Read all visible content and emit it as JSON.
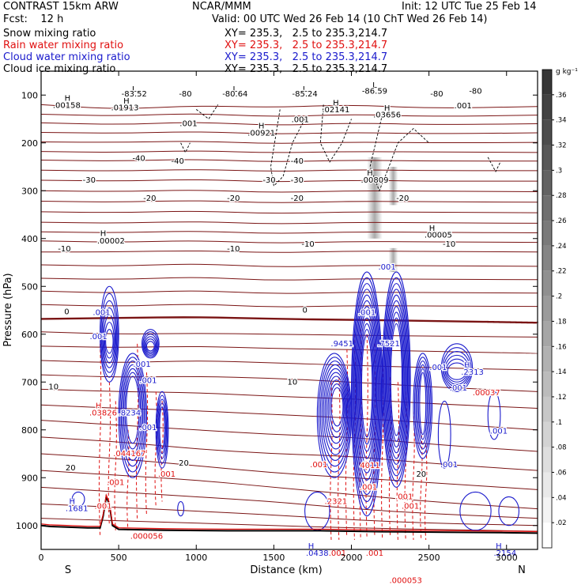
{
  "header": {
    "model": "CONTRAST 15km ARW",
    "center": "NCAR/MMM",
    "init": "Init: 12 UTC Tue 25 Feb 14",
    "fcst": "Fcst:    12 h",
    "valid": "Valid: 00 UTC Wed 26 Feb 14 (10 ChT Wed 26 Feb 14)",
    "fields": [
      {
        "name": "Snow mixing ratio",
        "xy": "XY= 235.3,   2.5 to 235.3,214.7",
        "color": "#000000"
      },
      {
        "name": "Rain water mixing ratio",
        "xy": "XY= 235.3,   2.5 to 235.3,214.7",
        "color": "#e01010"
      },
      {
        "name": "Cloud water mixing ratio",
        "xy": "XY= 235.3,   2.5 to 235.3,214.7",
        "color": "#1a1acc"
      },
      {
        "name": "Cloud ice mixing ratio",
        "xy": "XY= 235.3,   2.5 to 235.3,214.7",
        "color": "#000000"
      }
    ]
  },
  "chart_data": {
    "type": "contour",
    "xlabel": "Distance (km)",
    "ylabel": "Pressure (hPa)",
    "xlim": [
      0,
      3200
    ],
    "ylim": [
      1050,
      50
    ],
    "xticks": [
      0,
      500,
      1000,
      1500,
      2000,
      2500,
      3000
    ],
    "yticks": [
      100,
      200,
      300,
      400,
      500,
      600,
      700,
      800,
      900,
      1000
    ],
    "x_end_labels": {
      "left": "S",
      "right": "N"
    },
    "colorbar": {
      "unit": "g kg⁻¹",
      "ticks": [
        ".02",
        ".04",
        ".06",
        ".08",
        ".1",
        ".12",
        ".14",
        ".16",
        ".18",
        ".2",
        ".22",
        ".24",
        ".26",
        ".28",
        ".3",
        ".32",
        ".34",
        ".36"
      ],
      "tick_values": [
        0.02,
        0.04,
        0.06,
        0.08,
        0.1,
        0.12,
        0.14,
        0.16,
        0.18,
        0.2,
        0.22,
        0.24,
        0.26,
        0.28,
        0.3,
        0.32,
        0.34,
        0.36
      ],
      "range": [
        0,
        0.38
      ]
    },
    "temperature_contours": [
      {
        "value": -80,
        "label": "-80",
        "pressures": [
          120,
          130,
          122,
          126,
          120,
          128,
          124
        ]
      },
      {
        "value": -70,
        "label": "",
        "pressures": [
          140,
          144,
          138,
          146,
          140,
          145,
          142
        ]
      },
      {
        "value": -60,
        "label": "",
        "pressures": [
          158,
          162,
          156,
          164,
          158,
          162,
          160
        ]
      },
      {
        "value": -55,
        "label": "",
        "pressures": [
          178,
          180,
          176,
          182,
          178,
          181,
          179
        ]
      },
      {
        "value": -50,
        "label": "",
        "pressures": [
          198,
          199,
          196,
          202,
          198,
          200,
          199
        ]
      },
      {
        "value": -45,
        "label": "",
        "pressures": [
          218,
          220,
          216,
          221,
          218,
          219,
          220
        ]
      },
      {
        "value": -40,
        "label": "-40",
        "pressures": [
          236,
          238,
          234,
          240,
          236,
          238,
          238
        ]
      },
      {
        "value": -35,
        "label": "",
        "pressures": [
          257,
          259,
          255,
          260,
          256,
          258,
          258
        ]
      },
      {
        "value": -30,
        "label": "-30",
        "pressures": [
          278,
          280,
          276,
          282,
          278,
          280,
          280
        ]
      },
      {
        "value": -25,
        "label": "",
        "pressures": [
          300,
          302,
          298,
          304,
          300,
          301,
          302
        ]
      },
      {
        "value": -20,
        "label": "-20",
        "pressures": [
          322,
          324,
          320,
          326,
          322,
          323,
          324
        ]
      },
      {
        "value": -18,
        "label": "",
        "pressures": [
          344,
          346,
          342,
          348,
          344,
          345,
          346
        ]
      },
      {
        "value": -15,
        "label": "",
        "pressures": [
          366,
          368,
          364,
          370,
          366,
          367,
          368
        ]
      },
      {
        "value": -12,
        "label": "",
        "pressures": [
          386,
          388,
          384,
          390,
          386,
          387,
          388
        ]
      },
      {
        "value": -11,
        "label": "",
        "pressures": [
          405,
          408,
          404,
          410,
          406,
          407,
          408
        ]
      },
      {
        "value": -10,
        "label": "-10",
        "pressures": [
          428,
          428,
          425,
          430,
          426,
          427,
          428
        ]
      },
      {
        "value": -8,
        "label": "",
        "pressures": [
          455,
          458,
          452,
          460,
          456,
          457,
          458
        ]
      },
      {
        "value": -6,
        "label": "",
        "pressures": [
          483,
          486,
          480,
          488,
          484,
          485,
          486
        ]
      },
      {
        "value": -4,
        "label": "",
        "pressures": [
          510,
          514,
          508,
          516,
          512,
          513,
          514
        ]
      },
      {
        "value": -2,
        "label": "",
        "pressures": [
          538,
          542,
          536,
          544,
          540,
          541,
          542
        ]
      },
      {
        "value": 0,
        "label": "0",
        "pressures": [
          568,
          566,
          564,
          568,
          570,
          572,
          576
        ],
        "bold": true
      },
      {
        "value": 2,
        "label": "",
        "pressures": [
          595,
          600,
          598,
          600,
          602,
          604,
          606
        ]
      },
      {
        "value": 4,
        "label": "",
        "pressures": [
          625,
          628,
          625,
          630,
          632,
          636,
          640
        ]
      },
      {
        "value": 6,
        "label": "",
        "pressures": [
          655,
          660,
          655,
          660,
          665,
          670,
          675
        ]
      },
      {
        "value": 8,
        "label": "",
        "pressures": [
          685,
          690,
          688,
          692,
          700,
          710,
          720
        ]
      },
      {
        "value": 10,
        "label": "10",
        "pressures": [
          715,
          720,
          722,
          730,
          735,
          745,
          755
        ]
      },
      {
        "value": 12,
        "label": "",
        "pressures": [
          748,
          755,
          760,
          768,
          775,
          785,
          800
        ]
      },
      {
        "value": 14,
        "label": "",
        "pressures": [
          780,
          790,
          800,
          810,
          815,
          830,
          845
        ]
      },
      {
        "value": 16,
        "label": "",
        "pressures": [
          815,
          825,
          840,
          850,
          855,
          870,
          885
        ]
      },
      {
        "value": 18,
        "label": "",
        "pressures": [
          850,
          860,
          875,
          890,
          900,
          910,
          925
        ]
      },
      {
        "value": 20,
        "label": "20",
        "pressures": [
          885,
          895,
          905,
          920,
          935,
          950,
          965
        ]
      },
      {
        "value": 22,
        "label": "",
        "pressures": [
          920,
          930,
          940,
          950,
          965,
          975,
          985
        ]
      },
      {
        "value": 24,
        "label": "",
        "pressures": [
          955,
          962,
          970,
          978,
          988,
          995,
          1000
        ]
      },
      {
        "value": 26,
        "label": "",
        "pressures": [
          985,
          990,
          995,
          1000,
          1005,
          1008,
          1012
        ]
      }
    ],
    "contour_x": [
      0,
      500,
      1000,
      1500,
      2000,
      2500,
      3200
    ],
    "annotations": [
      {
        "text": "H",
        "x": 170,
        "p": 112,
        "color": "#000000"
      },
      {
        "text": ".00158",
        "x": 165,
        "p": 127,
        "color": "#000000"
      },
      {
        "text": "L",
        "x": 600,
        "p": 93,
        "color": "#000000"
      },
      {
        "text": "-83.52",
        "x": 600,
        "p": 103,
        "color": "#000000"
      },
      {
        "text": "H",
        "x": 550,
        "p": 118,
        "color": "#000000"
      },
      {
        "text": ".01913",
        "x": 540,
        "p": 132,
        "color": "#000000"
      },
      {
        "text": ".001",
        "x": 950,
        "p": 165,
        "color": "#000000"
      },
      {
        "text": "-80",
        "x": 930,
        "p": 103,
        "color": "#000000"
      },
      {
        "text": "L",
        "x": 1250,
        "p": 93,
        "color": "#000000"
      },
      {
        "text": "-80.64",
        "x": 1250,
        "p": 103,
        "color": "#000000"
      },
      {
        "text": "H",
        "x": 1420,
        "p": 170,
        "color": "#000000"
      },
      {
        "text": ".00921",
        "x": 1420,
        "p": 185,
        "color": "#000000"
      },
      {
        "text": "L",
        "x": 1700,
        "p": 93,
        "color": "#000000"
      },
      {
        "text": "-85.24",
        "x": 1700,
        "p": 103,
        "color": "#000000"
      },
      {
        "text": ".001",
        "x": 1670,
        "p": 157,
        "color": "#000000"
      },
      {
        "text": "H",
        "x": 1900,
        "p": 122,
        "color": "#000000"
      },
      {
        "text": ".02141",
        "x": 1900,
        "p": 136,
        "color": "#000000"
      },
      {
        "text": "L",
        "x": 2150,
        "p": 85,
        "color": "#000000"
      },
      {
        "text": "-86.59",
        "x": 2150,
        "p": 97,
        "color": "#000000"
      },
      {
        "text": "H",
        "x": 2230,
        "p": 133,
        "color": "#000000"
      },
      {
        "text": ".03656",
        "x": 2230,
        "p": 147,
        "color": "#000000"
      },
      {
        "text": "-80",
        "x": 2550,
        "p": 103,
        "color": "#000000"
      },
      {
        "text": "-80",
        "x": 2800,
        "p": 97,
        "color": "#000000"
      },
      {
        "text": ".001",
        "x": 2720,
        "p": 128,
        "color": "#000000"
      },
      {
        "text": "-40",
        "x": 630,
        "p": 238,
        "color": "#000000"
      },
      {
        "text": "-40",
        "x": 880,
        "p": 243,
        "color": "#000000"
      },
      {
        "text": "-40",
        "x": 1650,
        "p": 243,
        "color": "#000000"
      },
      {
        "text": "-30",
        "x": 310,
        "p": 283,
        "color": "#000000"
      },
      {
        "text": "-30",
        "x": 1470,
        "p": 283,
        "color": "#000000"
      },
      {
        "text": "-30",
        "x": 1650,
        "p": 283,
        "color": "#000000"
      },
      {
        "text": "H",
        "x": 2120,
        "p": 268,
        "color": "#000000"
      },
      {
        "text": ".00809",
        "x": 2150,
        "p": 283,
        "color": "#000000"
      },
      {
        "text": "-20",
        "x": 700,
        "p": 321,
        "color": "#000000"
      },
      {
        "text": "-20",
        "x": 1240,
        "p": 321,
        "color": "#000000"
      },
      {
        "text": "-20",
        "x": 1650,
        "p": 321,
        "color": "#000000"
      },
      {
        "text": "-20",
        "x": 2330,
        "p": 321,
        "color": "#000000"
      },
      {
        "text": "H",
        "x": 400,
        "p": 395,
        "color": "#000000"
      },
      {
        "text": ".00002",
        "x": 450,
        "p": 410,
        "color": "#000000"
      },
      {
        "text": "H",
        "x": 2520,
        "p": 384,
        "color": "#000000"
      },
      {
        "text": ".00005",
        "x": 2560,
        "p": 398,
        "color": "#000000"
      },
      {
        "text": "-10",
        "x": 150,
        "p": 427,
        "color": "#000000"
      },
      {
        "text": "-10",
        "x": 1240,
        "p": 427,
        "color": "#000000"
      },
      {
        "text": "-10",
        "x": 1720,
        "p": 417,
        "color": "#000000"
      },
      {
        "text": "-10",
        "x": 2630,
        "p": 417,
        "color": "#000000"
      },
      {
        "text": "0",
        "x": 165,
        "p": 558,
        "color": "#000000"
      },
      {
        "text": "0",
        "x": 1700,
        "p": 555,
        "color": "#000000"
      },
      {
        "text": "10",
        "x": 80,
        "p": 715,
        "color": "#000000"
      },
      {
        "text": "10",
        "x": 1620,
        "p": 705,
        "color": "#000000"
      },
      {
        "text": "20",
        "x": 190,
        "p": 885,
        "color": "#000000"
      },
      {
        "text": "20",
        "x": 920,
        "p": 875,
        "color": "#000000"
      },
      {
        "text": "20",
        "x": 2450,
        "p": 898,
        "color": "#000000"
      },
      {
        "text": ".001",
        "x": 390,
        "p": 560,
        "color": "#1a1acc"
      },
      {
        "text": ".001",
        "x": 370,
        "p": 610,
        "color": "#1a1acc"
      },
      {
        "text": ".001",
        "x": 650,
        "p": 668,
        "color": "#1a1acc"
      },
      {
        "text": ".001",
        "x": 690,
        "p": 702,
        "color": "#1a1acc"
      },
      {
        "text": "H",
        "x": 370,
        "p": 755,
        "color": "#e01010"
      },
      {
        "text": ".03826",
        "x": 400,
        "p": 770,
        "color": "#e01010"
      },
      {
        "text": ".8234",
        "x": 570,
        "p": 770,
        "color": "#1a1acc"
      },
      {
        "text": ".001",
        "x": 690,
        "p": 800,
        "color": "#1a1acc"
      },
      {
        "text": ".044167",
        "x": 570,
        "p": 855,
        "color": "#e01010"
      },
      {
        "text": ".001",
        "x": 480,
        "p": 915,
        "color": "#e01010"
      },
      {
        "text": ".001",
        "x": 810,
        "p": 898,
        "color": "#e01010"
      },
      {
        "text": "H",
        "x": 200,
        "p": 955,
        "color": "#1a1acc"
      },
      {
        "text": ".1681",
        "x": 230,
        "p": 970,
        "color": "#1a1acc"
      },
      {
        "text": ".001",
        "x": 400,
        "p": 965,
        "color": "#e01010"
      },
      {
        "text": ".000056",
        "x": 680,
        "p": 1028,
        "color": "#e01010"
      },
      {
        "text": ".001",
        "x": 2230,
        "p": 465,
        "color": "#1a1acc"
      },
      {
        "text": ".001",
        "x": 2100,
        "p": 560,
        "color": "#1a1acc"
      },
      {
        "text": ".9451",
        "x": 1940,
        "p": 625,
        "color": "#1a1acc"
      },
      {
        "text": ".7521",
        "x": 2240,
        "p": 625,
        "color": "#1a1acc"
      },
      {
        "text": ".001",
        "x": 2560,
        "p": 675,
        "color": "#1a1acc"
      },
      {
        "text": "H",
        "x": 2745,
        "p": 670,
        "color": "#1a1acc"
      },
      {
        "text": ".2313",
        "x": 2780,
        "p": 685,
        "color": "#1a1acc"
      },
      {
        "text": ".001",
        "x": 2690,
        "p": 718,
        "color": "#1a1acc"
      },
      {
        "text": ".00037",
        "x": 2870,
        "p": 728,
        "color": "#e01010"
      },
      {
        "text": ".001",
        "x": 2950,
        "p": 808,
        "color": "#1a1acc"
      },
      {
        "text": ".001",
        "x": 2630,
        "p": 878,
        "color": "#1a1acc"
      },
      {
        "text": ".001",
        "x": 1790,
        "p": 878,
        "color": "#e01010"
      },
      {
        "text": "4011",
        "x": 2120,
        "p": 880,
        "color": "#e01010"
      },
      {
        "text": ".001",
        "x": 2110,
        "p": 925,
        "color": "#e01010"
      },
      {
        "text": ".2321",
        "x": 1900,
        "p": 955,
        "color": "#e01010"
      },
      {
        "text": ".001",
        "x": 2340,
        "p": 945,
        "color": "#e01010"
      },
      {
        "text": ".001",
        "x": 2380,
        "p": 965,
        "color": "#e01010"
      },
      {
        "text": "H",
        "x": 1740,
        "p": 1048,
        "color": "#1a1acc"
      },
      {
        "text": ".0438",
        "x": 1780,
        "p": 1063,
        "color": "#1a1acc"
      },
      {
        "text": ".001",
        "x": 1910,
        "p": 1063,
        "color": "#e01010"
      },
      {
        "text": ".001",
        "x": 2150,
        "p": 1063,
        "color": "#e01010"
      },
      {
        "text": ".000053",
        "x": 2350,
        "p": 1120,
        "color": "#e01010"
      },
      {
        "text": "H",
        "x": 2950,
        "p": 1048,
        "color": "#1a1acc"
      },
      {
        "text": ".2154",
        "x": 2990,
        "p": 1063,
        "color": "#1a1acc"
      }
    ],
    "series": [
      {
        "name": "Snow mixing ratio",
        "color": "#000000"
      },
      {
        "name": "Rain water mixing ratio",
        "color": "#e01010"
      },
      {
        "name": "Cloud water mixing ratio",
        "color": "#1a1acc"
      },
      {
        "name": "Cloud ice mixing ratio",
        "color": "#000000"
      }
    ],
    "terrain": [
      [
        0,
        1000
      ],
      [
        60,
        1002
      ],
      [
        150,
        1003
      ],
      [
        300,
        1005
      ],
      [
        380,
        1005
      ],
      [
        400,
        980
      ],
      [
        420,
        940
      ],
      [
        440,
        955
      ],
      [
        460,
        1000
      ],
      [
        500,
        1008
      ],
      [
        800,
        1010
      ],
      [
        1200,
        1011
      ],
      [
        1800,
        1011
      ],
      [
        2200,
        1013
      ],
      [
        2600,
        1014
      ],
      [
        3000,
        1015
      ],
      [
        3200,
        1016
      ]
    ]
  }
}
